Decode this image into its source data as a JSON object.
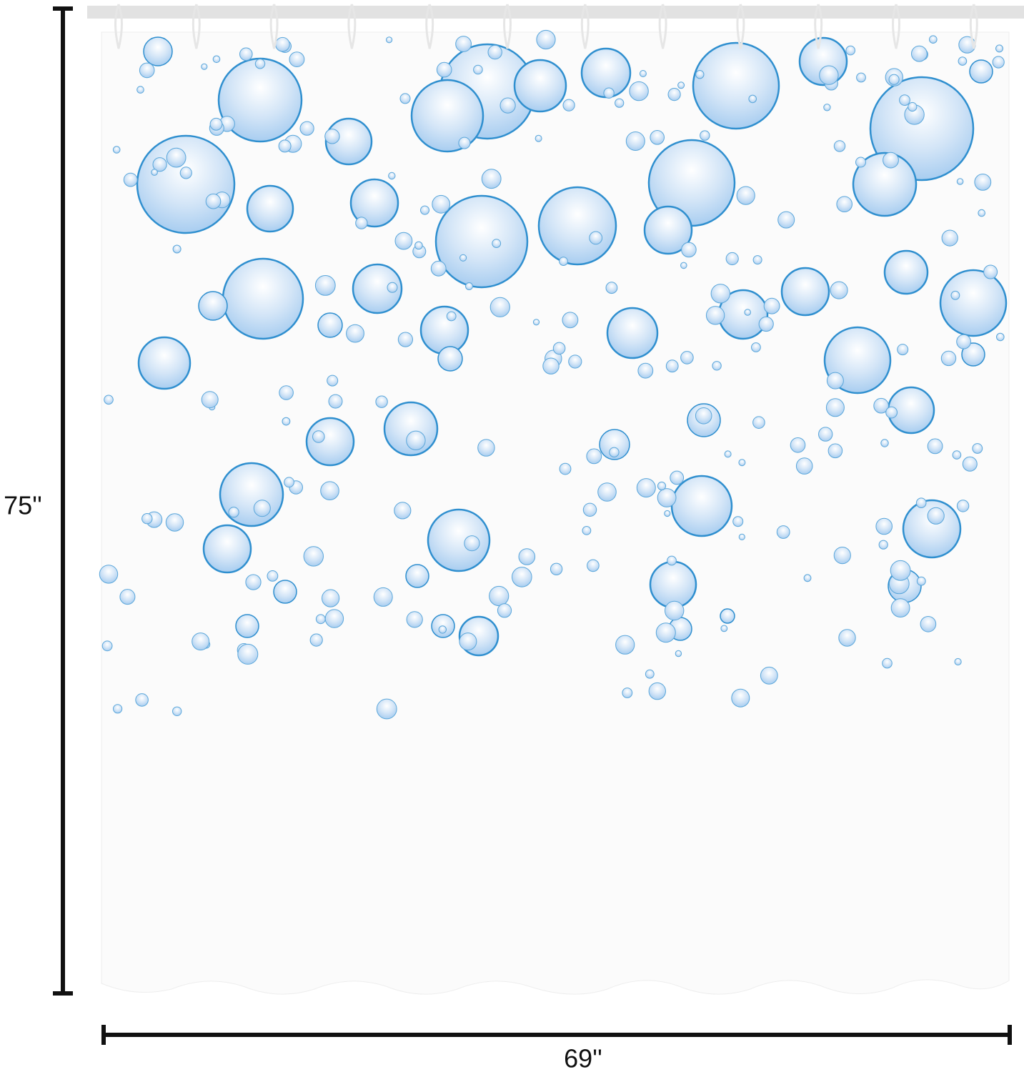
{
  "dimensions": {
    "height_label": "75''",
    "width_label": "69''"
  }
}
